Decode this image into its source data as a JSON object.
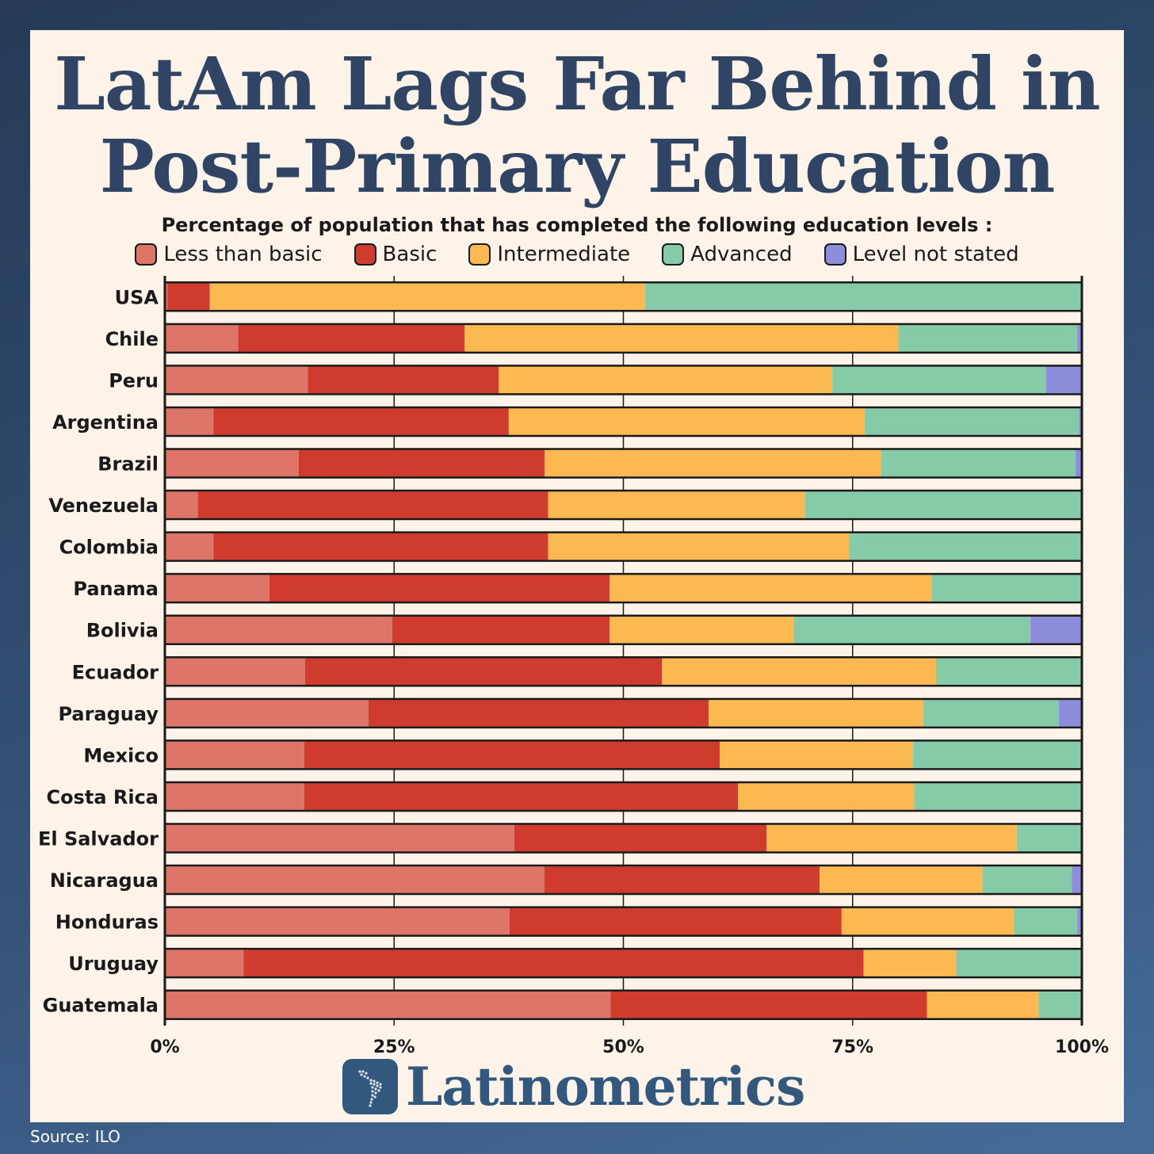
{
  "title_line1": "LatAm Lags Far Behind in",
  "title_line2": "Post-Primary Education",
  "subtitle": "Percentage of population that has completed the following education levels :",
  "source": "Source: ILO",
  "brand": "Latinometrics",
  "brand_logo_icon": "latin-america-map-icon",
  "colors": {
    "less_than_basic": "#dd7569",
    "basic": "#cf3c2e",
    "intermediate": "#fdb951",
    "advanced": "#86cba8",
    "not_stated": "#8c8ddb",
    "title": "#2f4563",
    "brand": "#33587e"
  },
  "chart_data": {
    "type": "bar",
    "orientation": "horizontal",
    "stacked": true,
    "xlim": [
      0,
      100
    ],
    "x_ticks": [
      "0%",
      "25%",
      "50%",
      "75%",
      "100%"
    ],
    "x_tick_values": [
      0,
      25,
      50,
      75,
      100
    ],
    "grid": true,
    "legend_position": "top",
    "categories": [
      "USA",
      "Chile",
      "Peru",
      "Argentina",
      "Brazil",
      "Venezuela",
      "Colombia",
      "Panama",
      "Bolivia",
      "Ecuador",
      "Paraguay",
      "Mexico",
      "Costa Rica",
      "El Salvador",
      "Nicaragua",
      "Honduras",
      "Uruguay",
      "Guatemala"
    ],
    "series": [
      {
        "name": "Less than basic",
        "values": [
          0.3,
          8.0,
          15.6,
          5.3,
          14.6,
          3.6,
          5.3,
          11.4,
          24.8,
          15.3,
          22.2,
          15.2,
          15.2,
          38.1,
          41.4,
          37.6,
          8.6,
          48.6
        ]
      },
      {
        "name": "Basic",
        "values": [
          4.6,
          24.7,
          20.8,
          32.2,
          26.8,
          38.2,
          36.5,
          37.1,
          23.7,
          38.9,
          37.1,
          45.3,
          47.3,
          27.5,
          30.0,
          36.2,
          67.6,
          34.5
        ]
      },
      {
        "name": "Intermediate",
        "values": [
          47.5,
          47.3,
          36.4,
          38.8,
          36.7,
          28.0,
          32.8,
          35.1,
          20.1,
          29.9,
          23.4,
          21.1,
          19.2,
          27.3,
          17.8,
          18.8,
          10.1,
          12.2
        ]
      },
      {
        "name": "Advanced",
        "values": [
          47.6,
          19.5,
          23.3,
          23.4,
          21.2,
          30.2,
          25.4,
          16.4,
          25.8,
          15.9,
          14.8,
          18.4,
          18.3,
          7.1,
          9.7,
          6.9,
          13.7,
          4.7
        ]
      },
      {
        "name": "Level not stated",
        "values": [
          0,
          0.5,
          3.9,
          0.3,
          0.7,
          0,
          0,
          0,
          5.6,
          0,
          2.5,
          0,
          0,
          0,
          1.1,
          0.5,
          0,
          0
        ]
      }
    ]
  }
}
